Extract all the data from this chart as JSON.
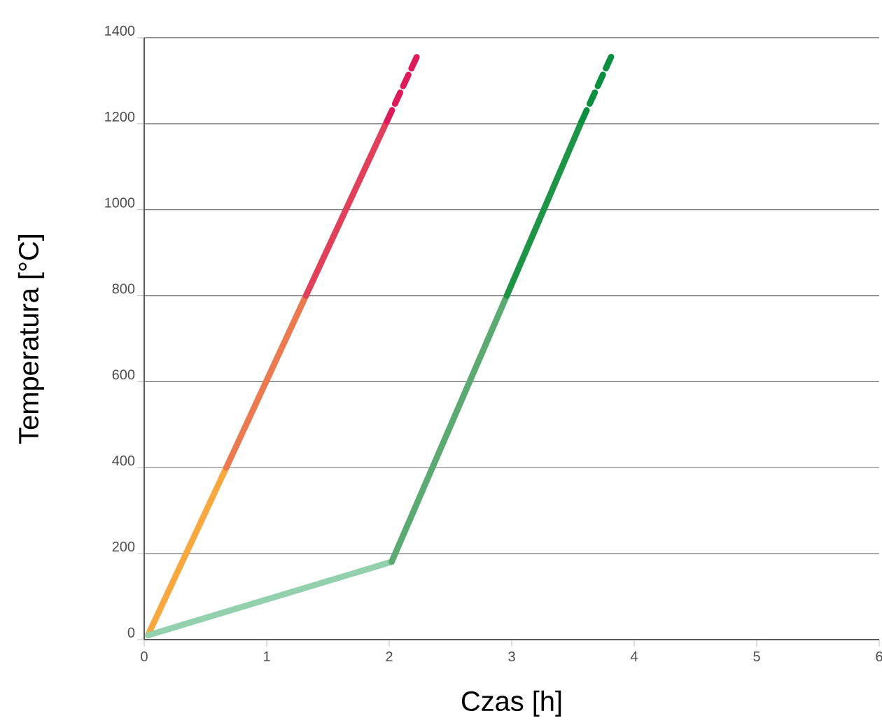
{
  "chart_data": {
    "type": "line",
    "xlabel": "Czas [h]",
    "ylabel": "Temperatura [°C]",
    "xlim": [
      0,
      6
    ],
    "ylim": [
      0,
      1400
    ],
    "xticks": [
      0,
      1,
      2,
      3,
      4,
      5,
      6
    ],
    "yticks": [
      0,
      200,
      400,
      600,
      800,
      1000,
      1200,
      1400
    ],
    "grid": "y",
    "marker": "none",
    "series": [
      {
        "color": "#f8a83f",
        "x": [
          0.03,
          0.67
        ],
        "values": [
          10,
          400
        ],
        "line_style": "solid"
      },
      {
        "color": "#ec7a50",
        "x": [
          0.67,
          1.32
        ],
        "values": [
          400,
          800
        ],
        "line_style": "solid"
      },
      {
        "color": "#e0405a",
        "x": [
          1.32,
          1.98
        ],
        "values": [
          800,
          1205
        ],
        "line_style": "solid"
      },
      {
        "color": "#dd1a5a",
        "x": [
          1.98,
          2.24
        ],
        "values": [
          1205,
          1365
        ],
        "line_style": "dashed"
      },
      {
        "color": "#93d1ae",
        "x": [
          0.03,
          2.02
        ],
        "values": [
          10,
          181
        ],
        "line_style": "solid"
      },
      {
        "color": "#5aaa72",
        "x": [
          2.02,
          2.96
        ],
        "values": [
          181,
          800
        ],
        "line_style": "solid"
      },
      {
        "color": "#1e9447",
        "x": [
          2.96,
          3.57
        ],
        "values": [
          800,
          1205
        ],
        "line_style": "solid"
      },
      {
        "color": "#0a8f3f",
        "x": [
          3.57,
          3.82
        ],
        "values": [
          1205,
          1361
        ],
        "line_style": "dashed"
      }
    ]
  }
}
